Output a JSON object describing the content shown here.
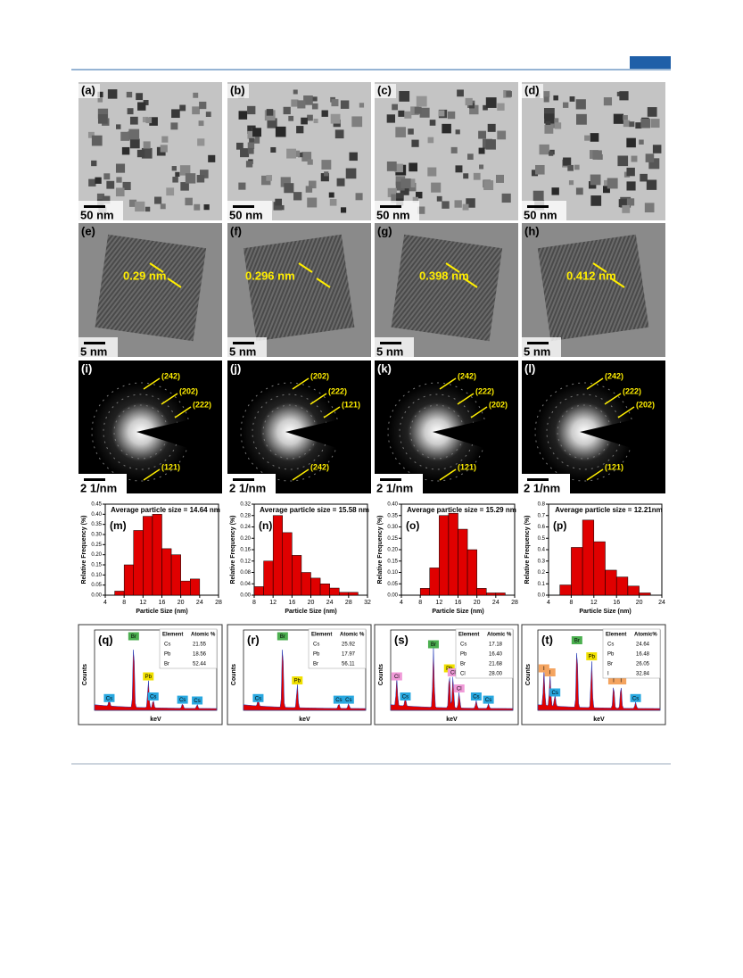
{
  "tem": [
    {
      "label": "(a)",
      "scale": "50 nm"
    },
    {
      "label": "(b)",
      "scale": "50 nm"
    },
    {
      "label": "(c)",
      "scale": "50 nm"
    },
    {
      "label": "(d)",
      "scale": "50 nm"
    }
  ],
  "hrtem": [
    {
      "label": "(e)",
      "scale": "5 nm",
      "spacing": "0.29 nm"
    },
    {
      "label": "(f)",
      "scale": "5 nm",
      "spacing": "0.296 nm"
    },
    {
      "label": "(g)",
      "scale": "5 nm",
      "spacing": "0.398 nm"
    },
    {
      "label": "(h)",
      "scale": "5 nm",
      "spacing": "0.412 nm"
    }
  ],
  "saed": [
    {
      "label": "(i)",
      "scale": "2 1/nm",
      "planes": [
        "(242)",
        "(202)",
        "(222)",
        "(121)"
      ]
    },
    {
      "label": "(j)",
      "scale": "2 1/nm",
      "planes": [
        "(202)",
        "(222)",
        "(121)",
        "(242)"
      ]
    },
    {
      "label": "(k)",
      "scale": "2 1/nm",
      "planes": [
        "(242)",
        "(222)",
        "(202)",
        "(121)"
      ]
    },
    {
      "label": "(l)",
      "scale": "2 1/nm",
      "planes": [
        "(242)",
        "(222)",
        "(202)",
        "(121)"
      ]
    }
  ],
  "histograms": [
    {
      "type": "histogram",
      "label": "(m)",
      "title": "Average particle size = 14.64 nm",
      "xlabel": "Particle Size (nm)",
      "ylabel": "Relative Frequency (%)",
      "color": "#e00000",
      "bins": [
        6,
        8,
        10,
        12,
        14,
        16,
        18,
        20,
        22,
        24
      ],
      "values": [
        0.02,
        0.15,
        0.32,
        0.39,
        0.4,
        0.23,
        0.2,
        0.07,
        0.08
      ],
      "xlim": [
        4,
        28
      ],
      "xticks": [
        4,
        8,
        12,
        16,
        20,
        24,
        28
      ],
      "ylim": [
        0,
        0.45
      ],
      "yticks": [
        {
          "value": 0,
          "label": "0.00"
        },
        {
          "value": 0.05,
          "label": "0.05"
        },
        {
          "value": 0.1,
          "label": "0.10"
        },
        {
          "value": 0.15,
          "label": "0.15"
        },
        {
          "value": 0.2,
          "label": "0.20"
        },
        {
          "value": 0.25,
          "label": "0.25"
        },
        {
          "value": 0.3,
          "label": "0.30"
        },
        {
          "value": 0.35,
          "label": "0.35"
        },
        {
          "value": 0.4,
          "label": "0.40"
        },
        {
          "value": 0.45,
          "label": "0.45"
        }
      ]
    },
    {
      "type": "histogram",
      "label": "(n)",
      "title": "Average particle size = 15.58 nm",
      "xlabel": "Particle Size (nm)",
      "ylabel": "Relative Frequency (%)",
      "color": "#e00000",
      "bins": [
        8,
        10,
        12,
        14,
        16,
        18,
        20,
        22,
        24,
        26,
        28,
        30
      ],
      "values": [
        0.03,
        0.12,
        0.28,
        0.22,
        0.14,
        0.08,
        0.06,
        0.04,
        0.025,
        0.01,
        0.01
      ],
      "xlim": [
        8,
        32
      ],
      "xticks": [
        8,
        12,
        16,
        20,
        24,
        28,
        32
      ],
      "ylim": [
        0,
        0.32
      ],
      "yticks": [
        {
          "value": 0,
          "label": "0.00"
        },
        {
          "value": 0.04,
          "label": "0.04"
        },
        {
          "value": 0.08,
          "label": "0.08"
        },
        {
          "value": 0.12,
          "label": "0.12"
        },
        {
          "value": 0.16,
          "label": "0.16"
        },
        {
          "value": 0.2,
          "label": "0.20"
        },
        {
          "value": 0.24,
          "label": "0.24"
        },
        {
          "value": 0.28,
          "label": "0.28"
        },
        {
          "value": 0.32,
          "label": "0.32"
        }
      ]
    },
    {
      "type": "histogram",
      "label": "(o)",
      "title": "Average particle size = 15.29 nm",
      "xlabel": "Particle Size (nm)",
      "ylabel": "Relative Frequency (%)",
      "color": "#e00000",
      "bins": [
        8,
        10,
        12,
        14,
        16,
        18,
        20,
        22,
        24,
        26
      ],
      "values": [
        0.03,
        0.12,
        0.35,
        0.36,
        0.29,
        0.2,
        0.03,
        0.01,
        0.01
      ],
      "xlim": [
        4,
        28
      ],
      "xticks": [
        4,
        8,
        12,
        16,
        20,
        24,
        28
      ],
      "ylim": [
        0,
        0.4
      ],
      "yticks": [
        {
          "value": 0,
          "label": "0.00"
        },
        {
          "value": 0.05,
          "label": "0.05"
        },
        {
          "value": 0.1,
          "label": "0.10"
        },
        {
          "value": 0.15,
          "label": "0.15"
        },
        {
          "value": 0.2,
          "label": "0.20"
        },
        {
          "value": 0.25,
          "label": "0.25"
        },
        {
          "value": 0.3,
          "label": "0.30"
        },
        {
          "value": 0.35,
          "label": "0.35"
        },
        {
          "value": 0.4,
          "label": "0.40"
        }
      ]
    },
    {
      "type": "histogram",
      "label": "(p)",
      "title": "Average particle size = 12.21nm",
      "xlabel": "Particle Size (nm)",
      "ylabel": "Relative Frequency (%)",
      "color": "#e00000",
      "bins": [
        6,
        8,
        10,
        12,
        14,
        16,
        18,
        20,
        22
      ],
      "values": [
        0.09,
        0.42,
        0.66,
        0.47,
        0.22,
        0.16,
        0.08,
        0.02
      ],
      "xlim": [
        4,
        24
      ],
      "xticks": [
        4,
        8,
        12,
        16,
        20,
        24
      ],
      "ylim": [
        0,
        0.8
      ],
      "yticks": [
        {
          "value": 0,
          "label": "0.0"
        },
        {
          "value": 0.1,
          "label": "0.1"
        },
        {
          "value": 0.2,
          "label": "0.2"
        },
        {
          "value": 0.3,
          "label": "0.3"
        },
        {
          "value": 0.4,
          "label": "0.4"
        },
        {
          "value": 0.5,
          "label": "0.5"
        },
        {
          "value": 0.6,
          "label": "0.6"
        },
        {
          "value": 0.7,
          "label": "0.7"
        },
        {
          "value": 0.8,
          "label": "0.8"
        }
      ]
    }
  ],
  "edx": [
    {
      "label": "(q)",
      "ylabel": "Counts",
      "xlabel": "keV",
      "table_header": [
        "Element",
        "Atomic %"
      ],
      "rows": [
        [
          "Cs",
          "21.55"
        ],
        [
          "Pb",
          "18.56"
        ],
        [
          "Br",
          "52.44"
        ]
      ],
      "peaks": [
        {
          "name": "Br",
          "color": "#4caf50"
        },
        {
          "name": "Pb",
          "color": "#f0e000"
        },
        {
          "name": "Cs",
          "color": "#29a8e0"
        },
        {
          "name": "Cs",
          "color": "#29a8e0"
        },
        {
          "name": "Cs",
          "color": "#29a8e0"
        },
        {
          "name": "Cs",
          "color": "#29a8e0"
        }
      ]
    },
    {
      "label": "(r)",
      "ylabel": "Counts",
      "xlabel": "keV",
      "table_header": [
        "Element",
        "Atomic %"
      ],
      "rows": [
        [
          "Cs",
          "25.92"
        ],
        [
          "Pb",
          "17.97"
        ],
        [
          "Br",
          "56.11"
        ]
      ],
      "peaks": [
        {
          "name": "Br",
          "color": "#4caf50"
        },
        {
          "name": "Pb",
          "color": "#f0e000"
        },
        {
          "name": "Cs",
          "color": "#29a8e0"
        },
        {
          "name": "Cs",
          "color": "#29a8e0"
        },
        {
          "name": "Cs",
          "color": "#29a8e0"
        }
      ]
    },
    {
      "label": "(s)",
      "ylabel": "Counts",
      "xlabel": "keV",
      "table_header": [
        "Element",
        "Atomic %"
      ],
      "rows": [
        [
          "Cs",
          "17.18"
        ],
        [
          "Pb",
          "16.40"
        ],
        [
          "Br",
          "21.68"
        ],
        [
          "Cl",
          "28.00"
        ]
      ],
      "peaks": [
        {
          "name": "Br",
          "color": "#4caf50"
        },
        {
          "name": "Pb",
          "color": "#f0e000"
        },
        {
          "name": "Cl",
          "color": "#f09ad8"
        },
        {
          "name": "Cs",
          "color": "#29a8e0"
        },
        {
          "name": "Cl",
          "color": "#f09ad8"
        },
        {
          "name": "Cl",
          "color": "#f09ad8"
        },
        {
          "name": "Cs",
          "color": "#29a8e0"
        },
        {
          "name": "Cs",
          "color": "#29a8e0"
        }
      ]
    },
    {
      "label": "(t)",
      "ylabel": "Counts",
      "xlabel": "keV",
      "table_header": [
        "Element",
        "Atomic%"
      ],
      "rows": [
        [
          "Cs",
          "24.64"
        ],
        [
          "Pb",
          "16.48"
        ],
        [
          "Br",
          "26.05"
        ],
        [
          "I",
          "32.84"
        ]
      ],
      "peaks": [
        {
          "name": "Br",
          "color": "#4caf50"
        },
        {
          "name": "Pb",
          "color": "#f0e000"
        },
        {
          "name": "I",
          "color": "#f4a460"
        },
        {
          "name": "I",
          "color": "#f4a460"
        },
        {
          "name": "Cs",
          "color": "#29a8e0"
        },
        {
          "name": "I",
          "color": "#f4a460"
        },
        {
          "name": "I",
          "color": "#f4a460"
        },
        {
          "name": "Cs",
          "color": "#29a8e0"
        }
      ]
    }
  ]
}
